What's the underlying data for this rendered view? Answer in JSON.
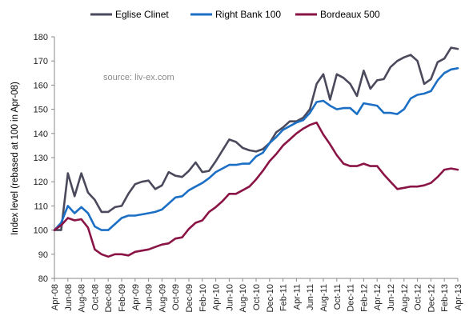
{
  "chart_data": {
    "type": "line",
    "title": "",
    "xlabel": "",
    "ylabel": "Index level (rebased at 100 in Apr-08)",
    "ylim": [
      80,
      180
    ],
    "yticks": [
      80,
      90,
      100,
      110,
      120,
      130,
      140,
      150,
      160,
      170,
      180
    ],
    "grid": false,
    "legend_position": "top",
    "annotation": "source: liv-ex.com",
    "x": [
      "Apr-08",
      "May-08",
      "Jun-08",
      "Jul-08",
      "Aug-08",
      "Sep-08",
      "Oct-08",
      "Nov-08",
      "Dec-08",
      "Jan-09",
      "Feb-09",
      "Mar-09",
      "Apr-09",
      "May-09",
      "Jun-09",
      "Jul-09",
      "Aug-09",
      "Sep-09",
      "Oct-09",
      "Nov-09",
      "Dec-09",
      "Jan-10",
      "Feb-10",
      "Mar-10",
      "Apr-10",
      "May-10",
      "Jun-10",
      "Jul-10",
      "Aug-10",
      "Sep-10",
      "Oct-10",
      "Nov-10",
      "Dec-10",
      "Jan-11",
      "Feb-11",
      "Mar-11",
      "Apr-11",
      "May-11",
      "Jun-11",
      "Jul-11",
      "Aug-11",
      "Sep-11",
      "Oct-11",
      "Nov-11",
      "Dec-11",
      "Jan-12",
      "Feb-12",
      "Mar-12",
      "Apr-12",
      "May-12",
      "Jun-12",
      "Jul-12",
      "Aug-12",
      "Sep-12",
      "Oct-12",
      "Nov-12",
      "Dec-12",
      "Jan-13",
      "Feb-13",
      "Mar-13",
      "Apr-13"
    ],
    "xtick_labels": [
      "Apr-08",
      "Jun-08",
      "Aug-08",
      "Oct-08",
      "Dec-08",
      "Feb-09",
      "Apr-09",
      "Jun-09",
      "Aug-09",
      "Oct-09",
      "Dec-09",
      "Feb-10",
      "Apr-10",
      "Jun-10",
      "Aug-10",
      "Oct-10",
      "Dec-10",
      "Feb-11",
      "Apr-11",
      "Jun-11",
      "Aug-11",
      "Oct-11",
      "Dec-11",
      "Feb-12",
      "Apr-12",
      "Jun-12",
      "Aug-12",
      "Oct-12",
      "Dec-12",
      "Feb-13",
      "Apr-13"
    ],
    "series": [
      {
        "name": "Eglise Clinet",
        "color": "#4a4a5c",
        "values": [
          100,
          100,
          123.5,
          114,
          123.5,
          115.5,
          112.5,
          107.5,
          107.5,
          109.5,
          110,
          115,
          119,
          120,
          120.5,
          117,
          118.5,
          124,
          122.5,
          122,
          124.5,
          128,
          124,
          124.5,
          128.5,
          133,
          137.5,
          136.5,
          134,
          133,
          132.5,
          133.5,
          136,
          140.5,
          142.5,
          145,
          145,
          146.5,
          150,
          160.5,
          164.5,
          154,
          164.5,
          163,
          160.5,
          155.5,
          166,
          158.5,
          162,
          162.5,
          167.5,
          170,
          171.5,
          172.5,
          170,
          160.5,
          162.5,
          169.5,
          171,
          175.5,
          175
        ]
      },
      {
        "name": "Right Bank 100",
        "color": "#1b6fc4",
        "values": [
          100,
          103,
          110,
          107,
          109.5,
          107,
          101.5,
          100,
          100,
          102.5,
          105,
          106,
          106,
          106.5,
          107,
          107.5,
          108.5,
          111,
          113.5,
          114,
          116.5,
          118,
          119.5,
          121.5,
          124,
          125.5,
          127,
          127,
          127.5,
          127.5,
          130.5,
          132,
          136,
          138.5,
          141.5,
          143,
          144.5,
          145.5,
          148.5,
          153,
          153.5,
          151.5,
          150,
          150.5,
          150.5,
          148,
          152.5,
          152,
          151.5,
          148.5,
          148.5,
          148,
          150,
          154.5,
          156,
          156.5,
          157.5,
          162,
          165,
          166.5,
          167
        ]
      },
      {
        "name": "Bordeaux 500",
        "color": "#8a1445",
        "values": [
          100,
          102,
          105,
          104,
          104.5,
          101,
          92,
          90,
          89,
          90,
          90,
          89.5,
          91,
          91.5,
          92,
          93,
          94,
          94.5,
          96.5,
          97,
          100.5,
          103,
          104,
          107.5,
          109.5,
          112,
          115,
          115,
          116.5,
          118,
          121,
          124.5,
          128.5,
          131.5,
          135,
          137.5,
          140,
          142,
          143.5,
          144.5,
          139.5,
          135.5,
          131,
          127.5,
          126.5,
          126.5,
          127.5,
          126.5,
          126.5,
          123,
          120,
          117,
          117.5,
          118,
          118,
          118.5,
          119.5,
          122,
          125,
          125.5,
          125
        ]
      }
    ]
  }
}
